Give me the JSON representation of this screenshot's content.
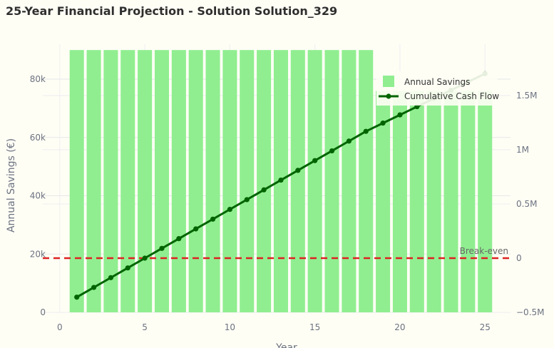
{
  "title": "25-Year Financial Projection - Solution Solution_329",
  "chart_data": {
    "type": "bar",
    "x": [
      1,
      2,
      3,
      4,
      5,
      6,
      7,
      8,
      9,
      10,
      11,
      12,
      13,
      14,
      15,
      16,
      17,
      18,
      19,
      20,
      21,
      22,
      23,
      24,
      25
    ],
    "xlabel": "Year",
    "xlim": [
      -1,
      26.5
    ],
    "xticks": [
      0,
      5,
      10,
      15,
      20,
      25
    ],
    "xtick_labels": [
      "0",
      "5",
      "10",
      "15",
      "20",
      "25"
    ],
    "ylabel": "Annual Savings (€)",
    "ylim": [
      0,
      92000
    ],
    "yticks": [
      0,
      20000,
      40000,
      60000,
      80000
    ],
    "ytick_labels": [
      "0",
      "20k",
      "40k",
      "60k",
      "80k"
    ],
    "y2lim": [
      -500000,
      1974000
    ],
    "y2ticks": [
      -500000,
      0,
      500000,
      1000000,
      1500000
    ],
    "y2tick_labels": [
      "−0.5M",
      "0",
      "0.5M",
      "1M",
      "1.5M"
    ],
    "series": [
      {
        "name": "Annual Savings",
        "type": "bar",
        "axis": "y",
        "color": "#90ee90",
        "values": [
          90000,
          90000,
          90000,
          90000,
          90000,
          90000,
          90000,
          90000,
          90000,
          90000,
          90000,
          90000,
          90000,
          90000,
          90000,
          90000,
          90000,
          90000,
          76000,
          76000,
          76000,
          76000,
          76000,
          76000,
          76000
        ]
      },
      {
        "name": "Cumulative Cash Flow",
        "type": "line",
        "axis": "y2",
        "color": "#006400",
        "values": [
          -360000,
          -270000,
          -180000,
          -90000,
          0,
          90000,
          180000,
          270000,
          360000,
          450000,
          540000,
          630000,
          720000,
          810000,
          900000,
          990000,
          1080000,
          1170000,
          1246000,
          1322000,
          1398000,
          1474000,
          1550000,
          1626000,
          1702000
        ]
      }
    ],
    "reference_line": {
      "value": 0,
      "axis": "y2",
      "label": "Break-even",
      "color": "#dd2222"
    },
    "grid": true,
    "legend_position": "top-right"
  }
}
